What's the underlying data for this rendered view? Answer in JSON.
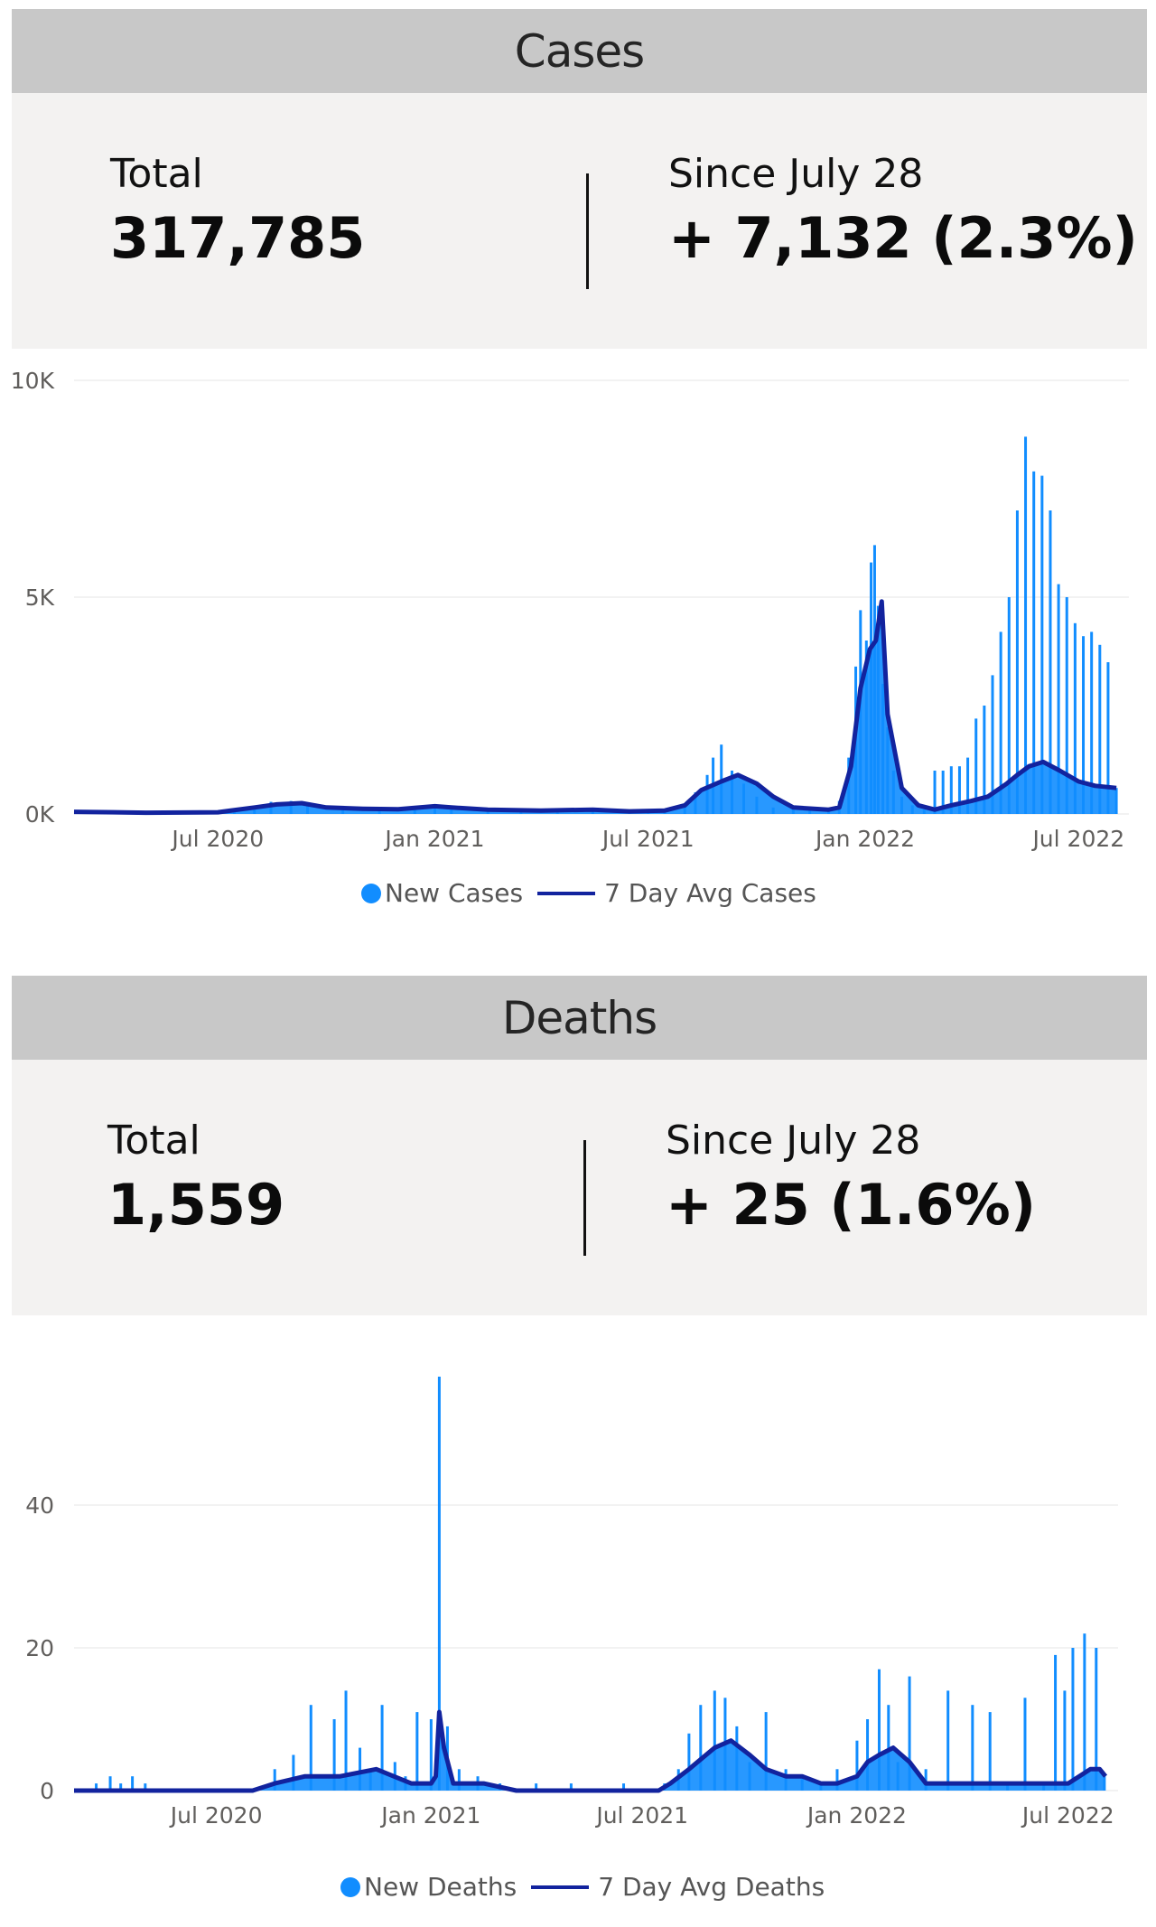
{
  "cases": {
    "header": "Cases",
    "total_label": "Total",
    "total_value": "317,785",
    "since_label": "Since July 28",
    "since_value": "+ 7,132 (2.3%)"
  },
  "deaths": {
    "header": "Deaths",
    "total_label": "Total",
    "total_value": "1,559",
    "since_label": "Since July 28",
    "since_value": "+ 25 (1.6%)"
  },
  "colors": {
    "bars": "#118dff",
    "avg_line": "#12239e",
    "grid": "#e6e6e6",
    "axis_text": "#605e5c"
  },
  "chart_data": [
    {
      "type": "bar",
      "title": "",
      "xlabel": "",
      "ylabel": "",
      "x_range": [
        "2020-03-01",
        "2022-08-05"
      ],
      "ylim": [
        0,
        10000
      ],
      "y_ticks": [
        0,
        5000,
        10000
      ],
      "y_tick_labels": [
        "0K",
        "5K",
        "10K"
      ],
      "x_tick_labels": [
        {
          "date": "2020-07-01",
          "label": "Jul 2020"
        },
        {
          "date": "2021-01-01",
          "label": "Jan 2021"
        },
        {
          "date": "2021-07-01",
          "label": "Jul 2021"
        },
        {
          "date": "2022-01-01",
          "label": "Jan 2022"
        },
        {
          "date": "2022-07-01",
          "label": "Jul 2022"
        }
      ],
      "grid": true,
      "legend_position": "bottom-center",
      "series": [
        {
          "name": "New Cases",
          "style": "bars",
          "x": [
            "2020-03-15",
            "2020-04-15",
            "2020-05-15",
            "2020-06-15",
            "2020-07-15",
            "2020-08-01",
            "2020-08-15",
            "2020-09-01",
            "2020-09-15",
            "2020-10-15",
            "2020-11-15",
            "2020-12-15",
            "2021-01-01",
            "2021-01-15",
            "2021-02-15",
            "2021-03-15",
            "2021-04-15",
            "2021-05-15",
            "2021-06-15",
            "2021-07-01",
            "2021-07-15",
            "2021-08-01",
            "2021-08-10",
            "2021-08-20",
            "2021-08-25",
            "2021-09-01",
            "2021-09-10",
            "2021-09-20",
            "2021-10-01",
            "2021-10-15",
            "2021-11-01",
            "2021-11-15",
            "2021-12-01",
            "2021-12-10",
            "2021-12-18",
            "2021-12-24",
            "2021-12-28",
            "2022-01-02",
            "2022-01-06",
            "2022-01-09",
            "2022-01-12",
            "2022-01-16",
            "2022-01-20",
            "2022-01-25",
            "2022-02-01",
            "2022-02-10",
            "2022-02-20",
            "2022-03-01",
            "2022-03-08",
            "2022-03-15",
            "2022-03-22",
            "2022-03-29",
            "2022-04-05",
            "2022-04-12",
            "2022-04-19",
            "2022-04-26",
            "2022-05-03",
            "2022-05-10",
            "2022-05-17",
            "2022-05-24",
            "2022-05-31",
            "2022-06-07",
            "2022-06-14",
            "2022-06-21",
            "2022-06-28",
            "2022-07-05",
            "2022-07-12",
            "2022-07-19",
            "2022-07-26",
            "2022-08-02"
          ],
          "values": [
            30,
            40,
            50,
            40,
            60,
            150,
            280,
            300,
            250,
            120,
            150,
            130,
            200,
            180,
            100,
            80,
            90,
            120,
            60,
            50,
            80,
            200,
            500,
            900,
            1300,
            1600,
            1000,
            700,
            400,
            150,
            100,
            80,
            120,
            300,
            1300,
            3400,
            4700,
            4000,
            5800,
            6200,
            4800,
            3000,
            2000,
            1000,
            400,
            200,
            100,
            1000,
            1000,
            1100,
            1100,
            1300,
            2200,
            2500,
            3200,
            4200,
            5000,
            7000,
            8700,
            7900,
            7800,
            7000,
            5300,
            5000,
            4400,
            4100,
            4200,
            3900,
            3500,
            600
          ]
        },
        {
          "name": "7 Day Avg Cases",
          "style": "line",
          "x": [
            "2020-03-01",
            "2020-05-01",
            "2020-07-01",
            "2020-08-01",
            "2020-08-20",
            "2020-09-10",
            "2020-10-01",
            "2020-11-01",
            "2020-12-01",
            "2021-01-01",
            "2021-01-15",
            "2021-02-15",
            "2021-04-01",
            "2021-05-15",
            "2021-06-15",
            "2021-07-15",
            "2021-08-01",
            "2021-08-15",
            "2021-09-01",
            "2021-09-15",
            "2021-10-01",
            "2021-10-15",
            "2021-11-01",
            "2021-12-01",
            "2021-12-10",
            "2021-12-20",
            "2021-12-28",
            "2022-01-05",
            "2022-01-10",
            "2022-01-15",
            "2022-01-20",
            "2022-02-01",
            "2022-02-15",
            "2022-03-01",
            "2022-03-15",
            "2022-04-01",
            "2022-04-15",
            "2022-05-01",
            "2022-05-10",
            "2022-05-20",
            "2022-06-01",
            "2022-06-15",
            "2022-07-01",
            "2022-07-15",
            "2022-08-02"
          ],
          "values": [
            50,
            30,
            40,
            150,
            220,
            250,
            150,
            120,
            110,
            180,
            150,
            100,
            80,
            100,
            60,
            80,
            200,
            550,
            750,
            900,
            700,
            400,
            150,
            100,
            150,
            1100,
            2900,
            3800,
            4000,
            4900,
            2300,
            600,
            200,
            100,
            200,
            300,
            400,
            700,
            900,
            1100,
            1200,
            1000,
            750,
            650,
            600
          ]
        }
      ]
    },
    {
      "type": "bar",
      "title": "",
      "xlabel": "",
      "ylabel": "",
      "x_range": [
        "2020-03-01",
        "2022-08-05"
      ],
      "ylim": [
        0,
        60
      ],
      "y_ticks": [
        0,
        20,
        40
      ],
      "y_tick_labels": [
        "0",
        "20",
        "40"
      ],
      "x_tick_labels": [
        {
          "date": "2020-07-01",
          "label": "Jul 2020"
        },
        {
          "date": "2021-01-01",
          "label": "Jan 2021"
        },
        {
          "date": "2021-07-01",
          "label": "Jul 2021"
        },
        {
          "date": "2022-01-01",
          "label": "Jan 2022"
        },
        {
          "date": "2022-07-01",
          "label": "Jul 2022"
        }
      ],
      "grid": true,
      "legend_position": "bottom-center",
      "series": [
        {
          "name": "New Deaths",
          "style": "bars",
          "x": [
            "2020-03-20",
            "2020-04-01",
            "2020-04-10",
            "2020-04-20",
            "2020-05-01",
            "2020-08-20",
            "2020-09-05",
            "2020-09-20",
            "2020-10-10",
            "2020-10-20",
            "2020-11-01",
            "2020-11-10",
            "2020-11-20",
            "2020-12-01",
            "2020-12-10",
            "2020-12-20",
            "2021-01-01",
            "2021-01-08",
            "2021-01-15",
            "2021-01-25",
            "2021-02-10",
            "2021-03-01",
            "2021-04-01",
            "2021-05-01",
            "2021-06-15",
            "2021-07-20",
            "2021-08-01",
            "2021-08-10",
            "2021-08-20",
            "2021-09-01",
            "2021-09-10",
            "2021-09-20",
            "2021-10-01",
            "2021-10-15",
            "2021-11-01",
            "2021-11-15",
            "2021-12-01",
            "2021-12-15",
            "2022-01-01",
            "2022-01-10",
            "2022-01-20",
            "2022-01-28",
            "2022-02-05",
            "2022-02-15",
            "2022-03-01",
            "2022-03-20",
            "2022-04-10",
            "2022-04-25",
            "2022-05-10",
            "2022-05-25",
            "2022-06-10",
            "2022-06-20",
            "2022-06-28",
            "2022-07-05",
            "2022-07-15",
            "2022-07-25",
            "2022-08-01"
          ],
          "values": [
            1,
            2,
            1,
            2,
            1,
            3,
            5,
            12,
            10,
            14,
            6,
            3,
            12,
            4,
            2,
            11,
            10,
            58,
            9,
            3,
            2,
            1,
            1,
            1,
            1,
            1,
            3,
            8,
            12,
            14,
            13,
            9,
            4,
            11,
            3,
            2,
            1,
            3,
            7,
            10,
            17,
            12,
            4,
            16,
            3,
            14,
            12,
            11,
            1,
            13,
            1,
            19,
            14,
            20,
            22,
            20,
            2
          ]
        },
        {
          "name": "7 Day Avg Deaths",
          "style": "line",
          "x": [
            "2020-03-01",
            "2020-05-01",
            "2020-08-01",
            "2020-08-20",
            "2020-09-15",
            "2020-10-15",
            "2020-11-15",
            "2020-12-15",
            "2021-01-01",
            "2021-01-05",
            "2021-01-08",
            "2021-01-12",
            "2021-01-20",
            "2021-02-15",
            "2021-03-15",
            "2021-07-15",
            "2021-07-25",
            "2021-08-10",
            "2021-09-01",
            "2021-09-15",
            "2021-10-01",
            "2021-10-15",
            "2021-11-01",
            "2021-11-15",
            "2021-12-01",
            "2021-12-15",
            "2022-01-01",
            "2022-01-10",
            "2022-01-20",
            "2022-02-01",
            "2022-02-15",
            "2022-03-01",
            "2022-04-01",
            "2022-05-01",
            "2022-06-01",
            "2022-07-01",
            "2022-07-20",
            "2022-07-28",
            "2022-08-02"
          ],
          "values": [
            0,
            0,
            0,
            1,
            2,
            2,
            3,
            1,
            1,
            2,
            11,
            6,
            1,
            1,
            0,
            0,
            1,
            3,
            6,
            7,
            5,
            3,
            2,
            2,
            1,
            1,
            2,
            4,
            5,
            6,
            4,
            1,
            1,
            1,
            1,
            1,
            3,
            3,
            2
          ]
        }
      ]
    }
  ]
}
